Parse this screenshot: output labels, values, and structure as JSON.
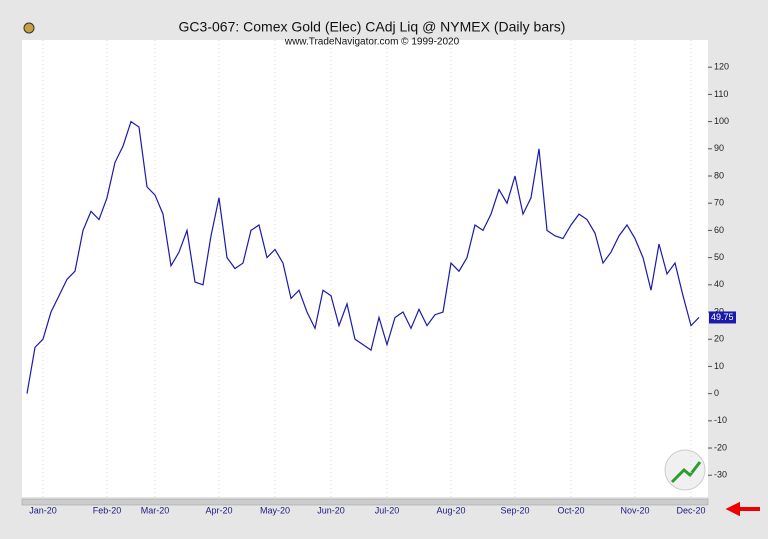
{
  "chart_data": {
    "type": "line",
    "title": "GC3-067:  Comex Gold (Elec) CAdj Liq @ NYMEX  (Daily bars)",
    "subtitle": "www.TradeNavigator.com © 1999-2020",
    "categories": [
      null,
      null,
      "Jan-20",
      null,
      null,
      null,
      null,
      null,
      null,
      null,
      "Feb-20",
      null,
      null,
      null,
      null,
      null,
      "Mar-20",
      null,
      null,
      null,
      null,
      null,
      null,
      null,
      "Apr-20",
      null,
      null,
      null,
      null,
      null,
      null,
      "May-20",
      null,
      null,
      null,
      null,
      null,
      null,
      "Jun-20",
      null,
      null,
      null,
      null,
      null,
      null,
      "Jul-20",
      null,
      null,
      null,
      null,
      null,
      null,
      null,
      "Aug-20",
      null,
      null,
      null,
      null,
      null,
      null,
      null,
      "Sep-20",
      null,
      null,
      null,
      null,
      null,
      null,
      "Oct-20",
      null,
      null,
      null,
      null,
      null,
      null,
      null,
      "Nov-20",
      null,
      null,
      null,
      null,
      null,
      null,
      "Dec-20",
      null
    ],
    "series": [
      {
        "color": "#1a1aaa",
        "values": [
          0,
          17,
          20,
          30,
          36,
          42,
          45,
          60,
          67,
          64,
          72,
          85,
          91,
          100,
          98,
          76,
          73,
          66,
          47,
          52,
          60,
          41,
          40,
          58,
          72,
          50,
          46,
          48,
          60,
          62,
          50,
          53,
          48,
          35,
          38,
          30,
          24,
          38,
          36,
          25,
          33,
          20,
          18,
          16,
          28,
          18,
          28,
          30,
          24,
          31,
          25,
          29,
          30,
          48,
          45,
          50,
          62,
          60,
          66,
          75,
          70,
          80,
          66,
          72,
          90,
          60,
          58,
          57,
          62,
          66,
          64,
          59,
          48,
          52,
          58,
          62,
          57,
          50,
          38,
          55,
          44,
          48,
          36,
          25,
          28
        ]
      }
    ],
    "last_value": 49.75,
    "ylim": [
      -38,
      130
    ],
    "yticks": [
      -30,
      -20,
      -10,
      0,
      10,
      20,
      30,
      40,
      50,
      60,
      70,
      80,
      90,
      100,
      110,
      120
    ]
  }
}
